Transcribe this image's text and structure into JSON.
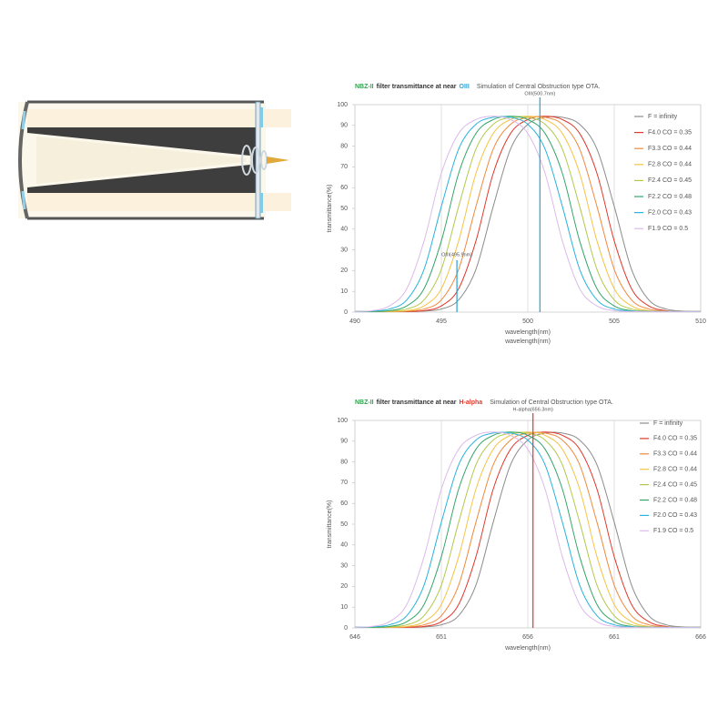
{
  "chart_data": [
    {
      "type": "line",
      "title": [
        "NBZ-II",
        "filter transmittance at near",
        "OIII"
      ],
      "title_colors": [
        "#2aa84a",
        "#333333",
        "#2aa7d6"
      ],
      "subtitle": "Simulation of Central Obstruction type OTA.",
      "xlabel": [
        "wavelength(nm)",
        "wavelength(nm)"
      ],
      "ylabel": "transmittance(%)",
      "x": [
        490,
        491,
        492,
        493,
        494,
        495,
        496,
        497,
        498,
        499,
        500,
        501,
        502,
        503,
        504,
        505,
        506,
        507,
        508,
        509,
        510
      ],
      "xlim": [
        490,
        510
      ],
      "xticks": [
        490,
        495,
        500,
        505,
        510
      ],
      "ylim": [
        0,
        100
      ],
      "yticks": [
        0,
        10,
        20,
        30,
        40,
        50,
        60,
        70,
        80,
        90,
        100
      ],
      "grid": true,
      "legend": "right",
      "markers": [
        {
          "label": "OIII(500.7nm)",
          "x": 500.7,
          "y": 100,
          "color": "#1fa3d6"
        },
        {
          "label": "OIII(495.9nm)",
          "x": 495.9,
          "y": 25,
          "color": "#1fa3d6"
        }
      ],
      "series": [
        {
          "name": "F = infinity",
          "color": "#8c8c8c",
          "values": [
            0.3,
            0.3,
            0.3,
            0.3,
            0.5,
            1.5,
            5.9,
            20.6,
            50.9,
            78.6,
            90.5,
            93.9,
            93.9,
            90.5,
            78.6,
            50.9,
            20.6,
            5.9,
            1.5,
            0.5,
            0.3
          ]
        },
        {
          "name": "F4.0 CO = 0.35",
          "color": "#e0392d",
          "values": [
            0.3,
            0.3,
            0.3,
            0.3,
            0.7,
            3.0,
            11.3,
            34.3,
            66.9,
            86.1,
            92.8,
            94.4,
            92.8,
            86.1,
            66.9,
            34.3,
            11.3,
            3.0,
            0.7,
            0.3,
            0.3
          ]
        },
        {
          "name": "F3.3 CO = 0.44",
          "color": "#f08a3c",
          "values": [
            0.3,
            0.3,
            0.3,
            0.5,
            1.5,
            5.9,
            20.6,
            50.9,
            78.6,
            90.5,
            93.9,
            93.9,
            90.5,
            78.6,
            50.9,
            20.6,
            5.9,
            1.5,
            0.5,
            0.3,
            0.3
          ]
        },
        {
          "name": "F2.8 CO = 0.44",
          "color": "#f5c445",
          "values": [
            0.3,
            0.3,
            0.3,
            0.7,
            3.0,
            11.3,
            34.3,
            66.9,
            86.1,
            92.8,
            94.4,
            92.8,
            86.1,
            66.9,
            34.3,
            11.3,
            3.0,
            0.7,
            0.3,
            0.3,
            0.3
          ]
        },
        {
          "name": "F2.4 CO = 0.45",
          "color": "#b3c94c",
          "values": [
            0.3,
            0.3,
            0.5,
            1.5,
            5.9,
            20.6,
            50.9,
            78.6,
            90.5,
            93.9,
            93.9,
            90.5,
            78.6,
            50.9,
            20.6,
            5.9,
            1.5,
            0.5,
            0.3,
            0.3,
            0.3
          ]
        },
        {
          "name": "F2.2 CO = 0.48",
          "color": "#35a56a",
          "values": [
            0.3,
            0.3,
            0.7,
            3.0,
            11.3,
            34.3,
            66.9,
            86.1,
            92.8,
            94.4,
            92.8,
            86.1,
            66.9,
            34.3,
            11.3,
            3.0,
            0.7,
            0.3,
            0.3,
            0.3,
            0.3
          ]
        },
        {
          "name": "F2.0 CO = 0.43",
          "color": "#2ab3dc",
          "values": [
            0.3,
            0.5,
            1.5,
            5.9,
            20.6,
            50.9,
            78.6,
            90.5,
            93.9,
            93.9,
            90.5,
            78.6,
            50.9,
            20.6,
            5.9,
            1.5,
            0.5,
            0.3,
            0.3,
            0.3,
            0.3
          ]
        },
        {
          "name": "F1.9 CO = 0.5",
          "color": "#dcbbe9",
          "values": [
            0.3,
            0.7,
            3.0,
            11.3,
            34.3,
            66.9,
            86.1,
            92.8,
            94.4,
            92.8,
            86.1,
            66.9,
            34.3,
            11.3,
            3.0,
            0.7,
            0.3,
            0.3,
            0.3,
            0.3,
            0.3
          ]
        }
      ]
    },
    {
      "type": "line",
      "title": [
        "NBZ-II",
        "filter transmittance at near",
        "H-alpha"
      ],
      "title_colors": [
        "#2aa84a",
        "#333333",
        "#e0392d"
      ],
      "subtitle": "Simulation of Central Obstruction type OTA.",
      "xlabel": [
        "wavelength(nm)"
      ],
      "ylabel": "transmittance(%)",
      "x": [
        646,
        647,
        648,
        649,
        650,
        651,
        652,
        653,
        654,
        655,
        656,
        657,
        658,
        659,
        660,
        661,
        662,
        663,
        664,
        665,
        666
      ],
      "xlim": [
        646,
        666
      ],
      "xticks": [
        646,
        651,
        656,
        661,
        666
      ],
      "ylim": [
        0,
        100
      ],
      "yticks": [
        0,
        10,
        20,
        30,
        40,
        50,
        60,
        70,
        80,
        90,
        100
      ],
      "grid": true,
      "legend": "right",
      "markers": [
        {
          "label": "H-alpha(656.3nm)",
          "x": 656.3,
          "y": 100,
          "color": "#e0392d"
        }
      ],
      "series": [
        {
          "name": "F = infinity",
          "color": "#8c8c8c",
          "values": [
            0.3,
            0.3,
            0.3,
            0.3,
            0.5,
            1.5,
            5.9,
            20.6,
            50.9,
            78.6,
            90.5,
            93.9,
            93.9,
            90.5,
            78.6,
            50.9,
            20.6,
            5.9,
            1.5,
            0.5,
            0.3
          ]
        },
        {
          "name": "F4.0 CO = 0.35",
          "color": "#e0392d",
          "values": [
            0.3,
            0.3,
            0.3,
            0.3,
            0.7,
            3.0,
            11.3,
            34.3,
            66.9,
            86.1,
            92.8,
            94.4,
            92.8,
            86.1,
            66.9,
            34.3,
            11.3,
            3.0,
            0.7,
            0.3,
            0.3
          ]
        },
        {
          "name": "F3.3 CO = 0.44",
          "color": "#f08a3c",
          "values": [
            0.3,
            0.3,
            0.3,
            0.5,
            1.5,
            5.9,
            20.6,
            50.9,
            78.6,
            90.5,
            93.9,
            93.9,
            90.5,
            78.6,
            50.9,
            20.6,
            5.9,
            1.5,
            0.5,
            0.3,
            0.3
          ]
        },
        {
          "name": "F2.8 CO = 0.44",
          "color": "#f5c445",
          "values": [
            0.3,
            0.3,
            0.3,
            0.7,
            3.0,
            11.3,
            34.3,
            66.9,
            86.1,
            92.8,
            94.4,
            92.8,
            86.1,
            66.9,
            34.3,
            11.3,
            3.0,
            0.7,
            0.3,
            0.3,
            0.3
          ]
        },
        {
          "name": "F2.4 CO = 0.45",
          "color": "#b3c94c",
          "values": [
            0.3,
            0.3,
            0.5,
            1.5,
            5.9,
            20.6,
            50.9,
            78.6,
            90.5,
            93.9,
            93.9,
            90.5,
            78.6,
            50.9,
            20.6,
            5.9,
            1.5,
            0.5,
            0.3,
            0.3,
            0.3
          ]
        },
        {
          "name": "F2.2 CO = 0.48",
          "color": "#35a56a",
          "values": [
            0.3,
            0.3,
            0.7,
            3.0,
            11.3,
            34.3,
            66.9,
            86.1,
            92.8,
            94.4,
            92.8,
            86.1,
            66.9,
            34.3,
            11.3,
            3.0,
            0.7,
            0.3,
            0.3,
            0.3,
            0.3
          ]
        },
        {
          "name": "F2.0 CO = 0.43",
          "color": "#2ab3dc",
          "values": [
            0.3,
            0.5,
            1.5,
            5.9,
            20.6,
            50.9,
            78.6,
            90.5,
            93.9,
            93.9,
            90.5,
            78.6,
            50.9,
            20.6,
            5.9,
            1.5,
            0.5,
            0.3,
            0.3,
            0.3,
            0.3
          ]
        },
        {
          "name": "F1.9 CO = 0.5",
          "color": "#dcbbe9",
          "values": [
            0.3,
            0.7,
            3.0,
            11.3,
            34.3,
            66.9,
            86.1,
            92.8,
            94.4,
            92.8,
            86.1,
            66.9,
            34.3,
            11.3,
            3.0,
            0.7,
            0.3,
            0.3,
            0.3,
            0.3,
            0.3
          ]
        }
      ]
    }
  ]
}
